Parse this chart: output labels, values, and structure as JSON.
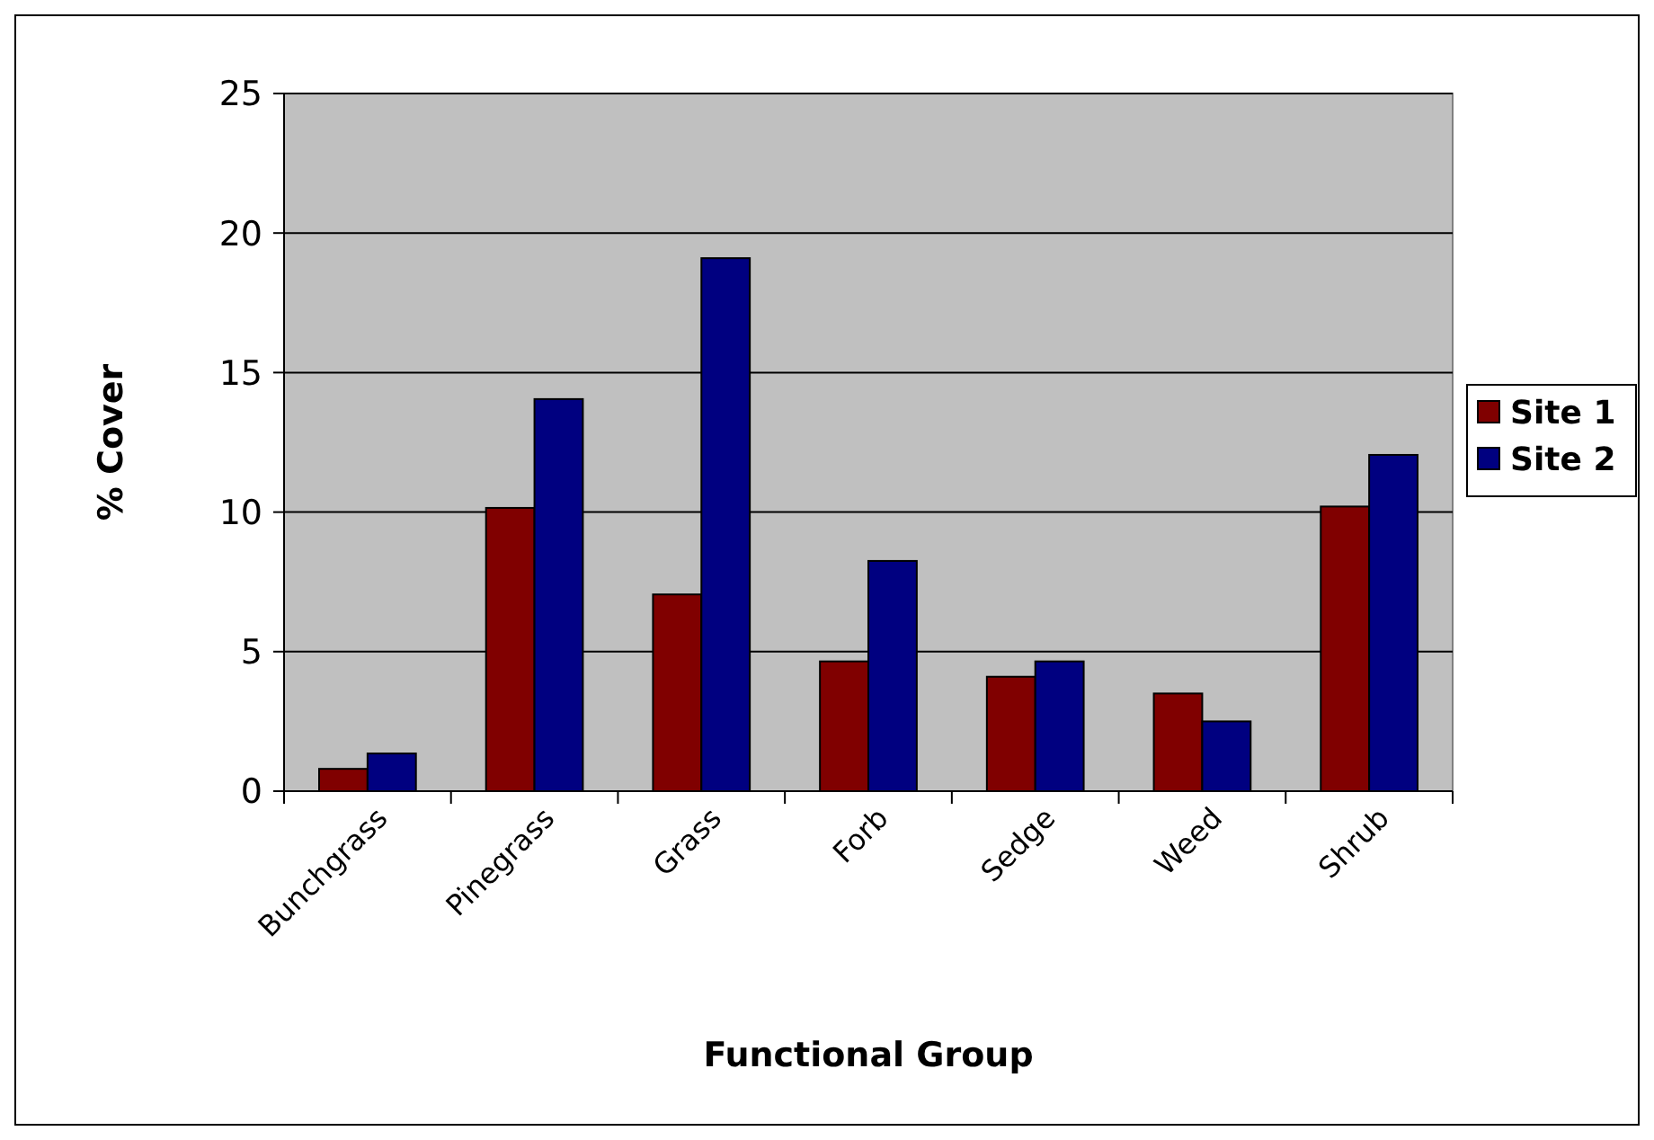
{
  "chart_data": {
    "type": "bar",
    "xlabel": "Functional Group",
    "ylabel": "% Cover",
    "categories": [
      "Bunchgrass",
      "Pinegrass",
      "Grass",
      "Forb",
      "Sedge",
      "Weed",
      "Shrub"
    ],
    "series": [
      {
        "name": "Site 1",
        "color": "#800000",
        "values": [
          0.8,
          10.15,
          7.05,
          4.65,
          4.1,
          3.5,
          10.2
        ]
      },
      {
        "name": "Site 2",
        "color": "#000080",
        "values": [
          1.35,
          14.05,
          19.1,
          8.25,
          4.65,
          2.5,
          12.05
        ]
      }
    ],
    "ylim": [
      0,
      25
    ],
    "yticks": [
      0,
      5,
      10,
      15,
      20,
      25
    ],
    "grid": "y",
    "legend": "right"
  }
}
